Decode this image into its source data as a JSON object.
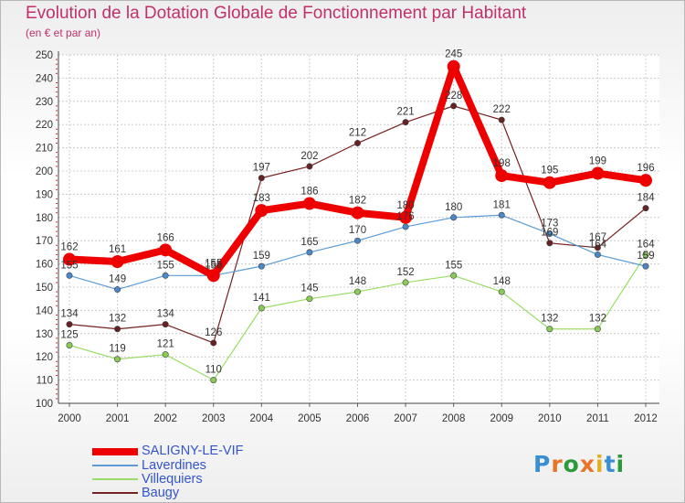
{
  "title": "Evolution de la Dotation Globale de Fonctionnement par Habitant",
  "subtitle": "(en € et par an)",
  "logo": {
    "letters": [
      "P",
      "r",
      "o",
      "x",
      "i",
      "t",
      "i"
    ],
    "colors": [
      "#3a8fd0",
      "#e8742a",
      "#2a9a3a",
      "#e8742a",
      "#e0b020",
      "#3a8fd0",
      "#2a9a3a"
    ]
  },
  "chart_data": {
    "type": "line",
    "x": [
      "2000",
      "2001",
      "2002",
      "2003",
      "2004",
      "2005",
      "2006",
      "2007",
      "2008",
      "2009",
      "2010",
      "2011",
      "2012"
    ],
    "ylim": [
      100,
      250
    ],
    "yticks": [
      100,
      110,
      120,
      130,
      140,
      150,
      160,
      170,
      180,
      190,
      200,
      210,
      220,
      230,
      240,
      250
    ],
    "grid": true,
    "legend_position": "bottom-left",
    "series": [
      {
        "name": "SALIGNY-LE-VIF",
        "color": "#ee0000",
        "values": [
          162,
          161,
          166,
          155,
          183,
          186,
          182,
          180,
          245,
          198,
          195,
          199,
          196
        ]
      },
      {
        "name": "Laverdines",
        "color": "#5b9bd5",
        "values": [
          155,
          149,
          155,
          155,
          159,
          165,
          170,
          176,
          180,
          181,
          173,
          164,
          159
        ]
      },
      {
        "name": "Villequiers",
        "color": "#99dd66",
        "values": [
          125,
          119,
          121,
          110,
          141,
          145,
          148,
          152,
          155,
          148,
          132,
          132,
          164
        ]
      },
      {
        "name": "Baugy",
        "color": "#772222",
        "values": [
          134,
          132,
          134,
          126,
          197,
          202,
          212,
          221,
          228,
          222,
          169,
          167,
          184
        ]
      }
    ]
  }
}
